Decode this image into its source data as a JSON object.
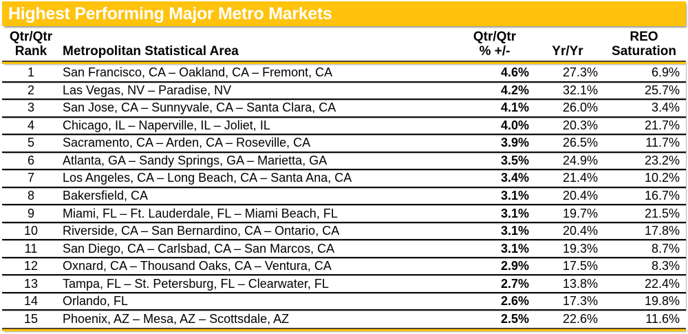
{
  "title": "Highest Performing Major Metro Markets",
  "colors": {
    "gold_accent": "#FFC20D",
    "title_text": "#FFFFFF",
    "body_text": "#000000",
    "row_line": "#0D0D0D"
  },
  "header": {
    "rank": {
      "line1": "Qtr/Qtr",
      "line2": "Rank"
    },
    "msa": {
      "line1": "",
      "line2": "Metropolitan Statistical Area"
    },
    "qtr": {
      "line1": "Qtr/Qtr",
      "line2": "% +/-"
    },
    "yr": {
      "line1": "",
      "line2": "Yr/Yr"
    },
    "reo": {
      "line1": "REO",
      "line2": "Saturation"
    }
  },
  "chart_data": {
    "type": "table",
    "columns": [
      "Qtr/Qtr Rank",
      "Metropolitan Statistical Area",
      "Qtr/Qtr % +/-",
      "Yr/Yr",
      "REO Saturation"
    ],
    "rows": [
      {
        "rank": "1",
        "msa": "San Francisco, CA – Oakland, CA – Fremont, CA",
        "qtr": "4.6%",
        "yr": "27.3%",
        "reo": "6.9%"
      },
      {
        "rank": "2",
        "msa": "Las Vegas, NV – Paradise, NV",
        "qtr": "4.2%",
        "yr": "32.1%",
        "reo": "25.7%"
      },
      {
        "rank": "3",
        "msa": "San Jose, CA – Sunnyvale, CA – Santa Clara, CA",
        "qtr": "4.1%",
        "yr": "26.0%",
        "reo": "3.4%"
      },
      {
        "rank": "4",
        "msa": "Chicago, IL – Naperville, IL – Joliet, IL",
        "qtr": "4.0%",
        "yr": "20.3%",
        "reo": "21.7%"
      },
      {
        "rank": "5",
        "msa": "Sacramento, CA – Arden, CA – Roseville, CA",
        "qtr": "3.9%",
        "yr": "26.5%",
        "reo": "11.7%"
      },
      {
        "rank": "6",
        "msa": "Atlanta, GA – Sandy Springs, GA – Marietta, GA",
        "qtr": "3.5%",
        "yr": "24.9%",
        "reo": "23.2%"
      },
      {
        "rank": "7",
        "msa": "Los Angeles, CA – Long Beach, CA – Santa Ana, CA",
        "qtr": "3.4%",
        "yr": "21.4%",
        "reo": "10.2%"
      },
      {
        "rank": "8",
        "msa": "Bakersfield, CA",
        "qtr": "3.1%",
        "yr": "20.4%",
        "reo": "16.7%"
      },
      {
        "rank": "9",
        "msa": "Miami, FL – Ft. Lauderdale, FL – Miami Beach, FL",
        "qtr": "3.1%",
        "yr": "19.7%",
        "reo": "21.5%"
      },
      {
        "rank": "10",
        "msa": "Riverside, CA – San Bernardino, CA – Ontario, CA",
        "qtr": "3.1%",
        "yr": "20.4%",
        "reo": "17.8%"
      },
      {
        "rank": "11",
        "msa": "San Diego, CA – Carlsbad, CA – San Marcos, CA",
        "qtr": "3.1%",
        "yr": "19.3%",
        "reo": "8.7%"
      },
      {
        "rank": "12",
        "msa": "Oxnard, CA – Thousand Oaks, CA – Ventura, CA",
        "qtr": "2.9%",
        "yr": "17.5%",
        "reo": "8.3%"
      },
      {
        "rank": "13",
        "msa": "Tampa, FL – St. Petersburg, FL – Clearwater, FL",
        "qtr": "2.7%",
        "yr": "13.8%",
        "reo": "22.4%"
      },
      {
        "rank": "14",
        "msa": "Orlando, FL",
        "qtr": "2.6%",
        "yr": "17.3%",
        "reo": "19.8%"
      },
      {
        "rank": "15",
        "msa": "Phoenix, AZ – Mesa, AZ – Scottsdale, AZ",
        "qtr": "2.5%",
        "yr": "22.6%",
        "reo": "11.6%"
      }
    ]
  }
}
